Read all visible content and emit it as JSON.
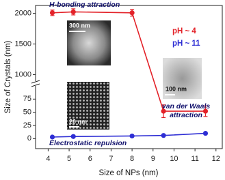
{
  "chart_data": {
    "type": "line",
    "x_label": "Size of NPs (nm)",
    "y_label": "Size of Crystals (nm)",
    "x": [
      4.2,
      5.2,
      8,
      9.5,
      11.5
    ],
    "series": [
      {
        "name": "pH ~ 4",
        "color": "#e32229",
        "values": [
          2010,
          2025,
          2010,
          52,
          52
        ],
        "errors": [
          45,
          50,
          55,
          12,
          10
        ]
      },
      {
        "name": "pH ~ 11",
        "color": "#2e2ed4",
        "values": [
          3,
          4,
          5,
          6,
          10
        ]
      }
    ],
    "xlim": [
      3.4,
      12.3
    ],
    "xticks": [
      4,
      5,
      6,
      7,
      8,
      9,
      10,
      11,
      12
    ],
    "ylims": [
      [
        -19,
        100
      ],
      [
        860,
        2130
      ]
    ],
    "yticks": [
      0,
      25,
      50,
      75,
      1000,
      1500,
      2000
    ],
    "legend": "upper right",
    "annotations": [
      {
        "lines": [
          "H-bonding attraction"
        ]
      },
      {
        "lines": [
          "van der Waals",
          "attraction"
        ]
      },
      {
        "lines": [
          "Electrostatic repulsion"
        ]
      }
    ],
    "insets": [
      {
        "label": "300 nm"
      },
      {
        "label": "100 nm"
      },
      {
        "label": "20 nm"
      }
    ]
  }
}
